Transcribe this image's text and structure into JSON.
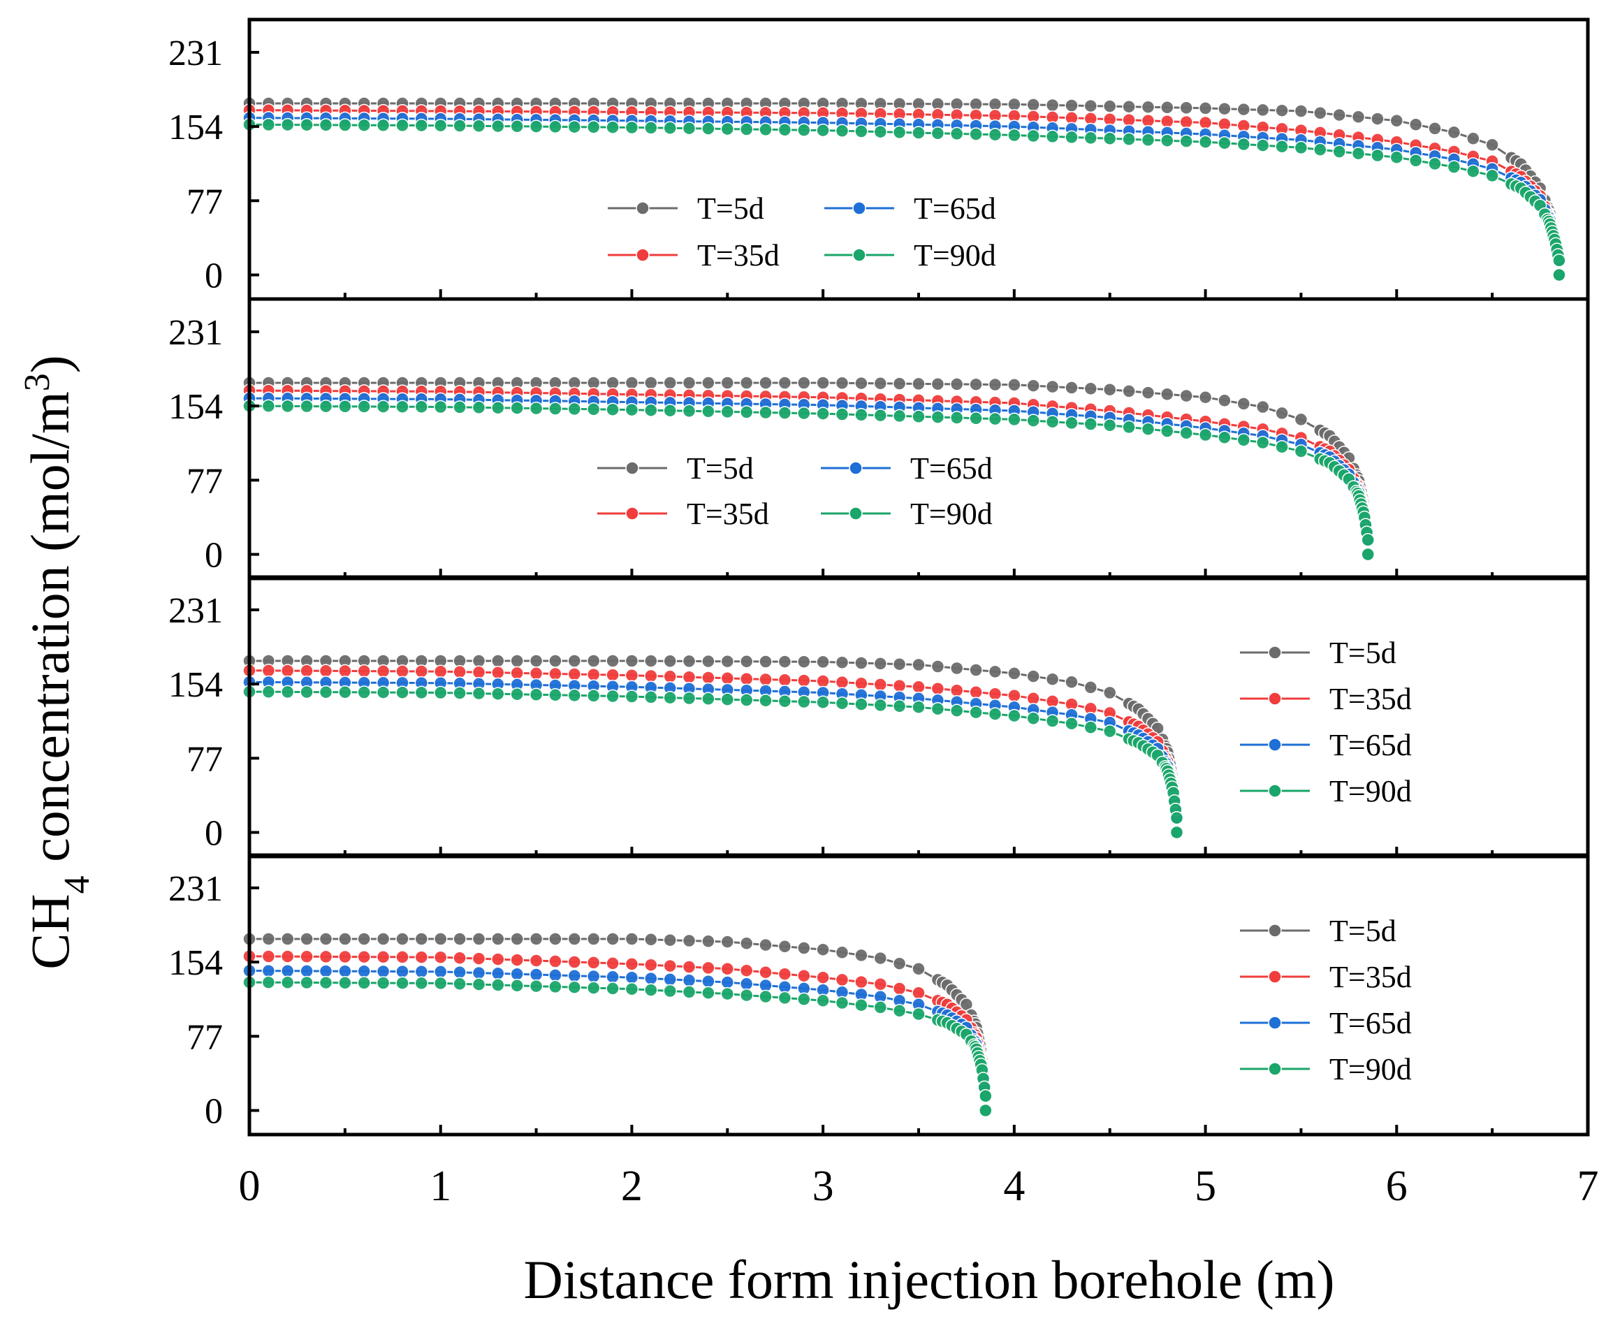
{
  "chart_data": {
    "type": "line",
    "xlabel": "Distance form injection borehole (m)",
    "ylabel_main": "CH",
    "ylabel_sub": "4",
    "ylabel_rest": " concentration (mol/m",
    "ylabel_sup": "3",
    "ylabel_close": ")",
    "xlim": [
      0,
      7
    ],
    "ylim": [
      -25,
      265
    ],
    "xticks": [
      "0",
      "1",
      "2",
      "3",
      "4",
      "5",
      "6",
      "7"
    ],
    "yticks": [
      "0",
      "77",
      "154",
      "231"
    ],
    "colors": {
      "T=5d": "#6b6b6b",
      "T=35d": "#f03c3c",
      "T=65d": "#1e6fd6",
      "T=90d": "#1aa56a"
    },
    "panels": [
      {
        "end_x": 6.85,
        "legend_layout": "two-column",
        "legend_position": "center",
        "series": [
          {
            "name": "T=5d",
            "values": [
              [
                0,
                178
              ],
              [
                1,
                178
              ],
              [
                2,
                178
              ],
              [
                3,
                178
              ],
              [
                4,
                177
              ],
              [
                5,
                173
              ],
              [
                5.5,
                170
              ],
              [
                6,
                160
              ],
              [
                6.3,
                148
              ],
              [
                6.5,
                135
              ],
              [
                6.65,
                115
              ],
              [
                6.75,
                90
              ],
              [
                6.8,
                65
              ],
              [
                6.83,
                40
              ],
              [
                6.85,
                15
              ]
            ]
          },
          {
            "name": "T=35d",
            "values": [
              [
                0,
                171
              ],
              [
                1,
                170
              ],
              [
                2,
                169
              ],
              [
                3,
                168
              ],
              [
                4,
                165
              ],
              [
                5,
                158
              ],
              [
                5.5,
                150
              ],
              [
                6,
                138
              ],
              [
                6.3,
                128
              ],
              [
                6.5,
                118
              ],
              [
                6.65,
                102
              ],
              [
                6.75,
                82
              ],
              [
                6.8,
                60
              ],
              [
                6.83,
                38
              ],
              [
                6.85,
                15
              ]
            ]
          },
          {
            "name": "T=65d",
            "values": [
              [
                0,
                163
              ],
              [
                1,
                162
              ],
              [
                2,
                160
              ],
              [
                3,
                158
              ],
              [
                4,
                154
              ],
              [
                5,
                146
              ],
              [
                5.5,
                140
              ],
              [
                6,
                130
              ],
              [
                6.3,
                120
              ],
              [
                6.5,
                110
              ],
              [
                6.65,
                96
              ],
              [
                6.75,
                78
              ],
              [
                6.8,
                58
              ],
              [
                6.83,
                36
              ],
              [
                6.85,
                15
              ]
            ]
          },
          {
            "name": "T=90d",
            "values": [
              [
                0,
                156
              ],
              [
                1,
                155
              ],
              [
                2,
                153
              ],
              [
                3,
                150
              ],
              [
                4,
                145
              ],
              [
                5,
                138
              ],
              [
                5.5,
                132
              ],
              [
                6,
                122
              ],
              [
                6.3,
                112
              ],
              [
                6.5,
                103
              ],
              [
                6.65,
                90
              ],
              [
                6.75,
                72
              ],
              [
                6.8,
                54
              ],
              [
                6.83,
                34
              ],
              [
                6.85,
                15
              ]
            ]
          }
        ],
        "end_point": [
          6.85,
          0
        ]
      },
      {
        "end_x": 5.85,
        "legend_layout": "two-column",
        "legend_position": "center",
        "series": [
          {
            "name": "T=5d",
            "values": [
              [
                0,
                178
              ],
              [
                1,
                178
              ],
              [
                2,
                178
              ],
              [
                3,
                178
              ],
              [
                4,
                176
              ],
              [
                4.5,
                171
              ],
              [
                5,
                163
              ],
              [
                5.3,
                153
              ],
              [
                5.5,
                140
              ],
              [
                5.65,
                123
              ],
              [
                5.75,
                100
              ],
              [
                5.8,
                78
              ],
              [
                5.83,
                50
              ],
              [
                5.85,
                15
              ]
            ]
          },
          {
            "name": "T=35d",
            "values": [
              [
                0,
                170
              ],
              [
                1,
                169
              ],
              [
                2,
                166
              ],
              [
                3,
                163
              ],
              [
                4,
                157
              ],
              [
                4.5,
                149
              ],
              [
                5,
                138
              ],
              [
                5.3,
                130
              ],
              [
                5.5,
                121
              ],
              [
                5.65,
                107
              ],
              [
                5.75,
                88
              ],
              [
                5.8,
                70
              ],
              [
                5.83,
                45
              ],
              [
                5.85,
                15
              ]
            ]
          },
          {
            "name": "T=65d",
            "values": [
              [
                0,
                162
              ],
              [
                1,
                161
              ],
              [
                2,
                158
              ],
              [
                3,
                155
              ],
              [
                4,
                149
              ],
              [
                4.5,
                142
              ],
              [
                5,
                131
              ],
              [
                5.3,
                123
              ],
              [
                5.5,
                114
              ],
              [
                5.65,
                101
              ],
              [
                5.75,
                83
              ],
              [
                5.8,
                66
              ],
              [
                5.83,
                43
              ],
              [
                5.85,
                15
              ]
            ]
          },
          {
            "name": "T=90d",
            "values": [
              [
                0,
                154
              ],
              [
                1,
                153
              ],
              [
                2,
                150
              ],
              [
                3,
                146
              ],
              [
                4,
                140
              ],
              [
                4.5,
                134
              ],
              [
                5,
                124
              ],
              [
                5.3,
                116
              ],
              [
                5.5,
                107
              ],
              [
                5.65,
                95
              ],
              [
                5.75,
                78
              ],
              [
                5.8,
                62
              ],
              [
                5.83,
                41
              ],
              [
                5.85,
                15
              ]
            ]
          }
        ],
        "end_point": [
          5.85,
          0
        ]
      },
      {
        "end_x": 4.85,
        "legend_layout": "one-column",
        "legend_position": "right",
        "series": [
          {
            "name": "T=5d",
            "values": [
              [
                0,
                178
              ],
              [
                1,
                178
              ],
              [
                2,
                178
              ],
              [
                3,
                177
              ],
              [
                3.5,
                174
              ],
              [
                4,
                165
              ],
              [
                4.3,
                156
              ],
              [
                4.5,
                145
              ],
              [
                4.65,
                128
              ],
              [
                4.75,
                108
              ],
              [
                4.8,
                85
              ],
              [
                4.83,
                55
              ],
              [
                4.85,
                15
              ]
            ]
          },
          {
            "name": "T=35d",
            "values": [
              [
                0,
                168
              ],
              [
                1,
                167
              ],
              [
                2,
                163
              ],
              [
                3,
                157
              ],
              [
                3.5,
                151
              ],
              [
                4,
                142
              ],
              [
                4.3,
                133
              ],
              [
                4.5,
                124
              ],
              [
                4.65,
                110
              ],
              [
                4.75,
                94
              ],
              [
                4.8,
                75
              ],
              [
                4.83,
                50
              ],
              [
                4.85,
                15
              ]
            ]
          },
          {
            "name": "T=65d",
            "values": [
              [
                0,
                156
              ],
              [
                1,
                155
              ],
              [
                2,
                151
              ],
              [
                3,
                145
              ],
              [
                3.5,
                139
              ],
              [
                4,
                130
              ],
              [
                4.3,
                122
              ],
              [
                4.5,
                114
              ],
              [
                4.65,
                101
              ],
              [
                4.75,
                87
              ],
              [
                4.8,
                70
              ],
              [
                4.83,
                47
              ],
              [
                4.85,
                15
              ]
            ]
          },
          {
            "name": "T=90d",
            "values": [
              [
                0,
                146
              ],
              [
                1,
                145
              ],
              [
                2,
                141
              ],
              [
                3,
                135
              ],
              [
                3.5,
                130
              ],
              [
                4,
                121
              ],
              [
                4.3,
                113
              ],
              [
                4.5,
                105
              ],
              [
                4.65,
                93
              ],
              [
                4.75,
                80
              ],
              [
                4.8,
                65
              ],
              [
                4.83,
                44
              ],
              [
                4.85,
                15
              ]
            ]
          }
        ],
        "end_point": [
          4.85,
          0
        ]
      },
      {
        "end_x": 3.85,
        "legend_layout": "one-column",
        "legend_position": "right",
        "series": [
          {
            "name": "T=5d",
            "values": [
              [
                0,
                178
              ],
              [
                1,
                178
              ],
              [
                2,
                178
              ],
              [
                2.5,
                175
              ],
              [
                3,
                167
              ],
              [
                3.3,
                158
              ],
              [
                3.5,
                147
              ],
              [
                3.65,
                130
              ],
              [
                3.75,
                110
              ],
              [
                3.8,
                88
              ],
              [
                3.83,
                58
              ],
              [
                3.85,
                15
              ]
            ]
          },
          {
            "name": "T=35d",
            "values": [
              [
                0,
                160
              ],
              [
                1,
                159
              ],
              [
                2,
                152
              ],
              [
                2.5,
                147
              ],
              [
                3,
                138
              ],
              [
                3.3,
                131
              ],
              [
                3.5,
                122
              ],
              [
                3.65,
                110
              ],
              [
                3.75,
                94
              ],
              [
                3.8,
                77
              ],
              [
                3.83,
                52
              ],
              [
                3.85,
                15
              ]
            ]
          },
          {
            "name": "T=65d",
            "values": [
              [
                0,
                145
              ],
              [
                1,
                144
              ],
              [
                2,
                138
              ],
              [
                2.5,
                133
              ],
              [
                3,
                125
              ],
              [
                3.3,
                118
              ],
              [
                3.5,
                110
              ],
              [
                3.65,
                99
              ],
              [
                3.75,
                86
              ],
              [
                3.8,
                70
              ],
              [
                3.83,
                48
              ],
              [
                3.85,
                15
              ]
            ]
          },
          {
            "name": "T=90d",
            "values": [
              [
                0,
                133
              ],
              [
                1,
                132
              ],
              [
                2,
                126
              ],
              [
                2.5,
                121
              ],
              [
                3,
                114
              ],
              [
                3.3,
                107
              ],
              [
                3.5,
                100
              ],
              [
                3.65,
                91
              ],
              [
                3.75,
                79
              ],
              [
                3.8,
                65
              ],
              [
                3.83,
                45
              ],
              [
                3.85,
                15
              ]
            ]
          }
        ],
        "end_point": [
          3.85,
          0
        ]
      }
    ]
  }
}
